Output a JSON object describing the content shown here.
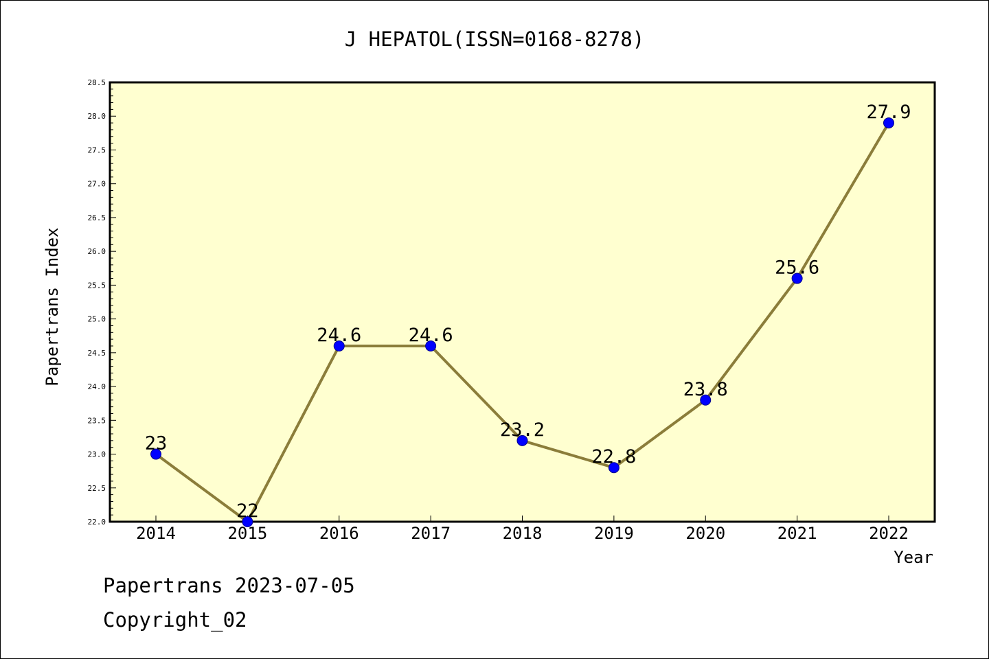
{
  "chart_data": {
    "type": "line",
    "title": "J HEPATOL(ISSN=0168-8278)",
    "xlabel": "Year",
    "ylabel": "Papertrans Index",
    "categories": [
      "2014",
      "2015",
      "2016",
      "2017",
      "2018",
      "2019",
      "2020",
      "2021",
      "2022"
    ],
    "series": [
      {
        "values": [
          23,
          22,
          24.6,
          24.6,
          23.2,
          22.8,
          23.8,
          25.6,
          27.9
        ],
        "data_labels": [
          "23",
          "22",
          "24.6",
          "24.6",
          "23.2",
          "22.8",
          "23.8",
          "25.6",
          "27.9"
        ]
      }
    ],
    "ylim": [
      22.0,
      28.5
    ],
    "yticks": [
      "22.0",
      "22.5",
      "23.0",
      "23.5",
      "24.0",
      "24.5",
      "25.0",
      "25.5",
      "26.0",
      "26.5",
      "27.0",
      "27.5",
      "28.0",
      "28.5"
    ],
    "grid": false,
    "colors": {
      "plot_background": "#FFFFD0",
      "line": "#8B7D3A",
      "marker": "#0000FF"
    }
  },
  "footer": {
    "date_line": "Papertrans 2023-07-05",
    "copyright": "Copyright_02"
  }
}
